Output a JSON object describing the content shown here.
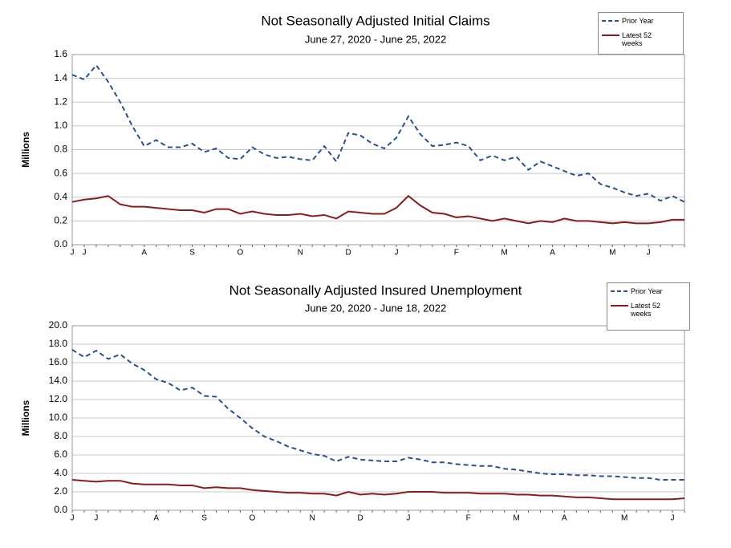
{
  "chart_data": [
    {
      "type": "line",
      "title": "Not Seasonally Adjusted Initial Claims",
      "subtitle": "June 27, 2020 - June 25, 2022",
      "ylabel": "Millions",
      "categories": [
        "J",
        "J",
        null,
        null,
        null,
        null,
        "A",
        null,
        null,
        null,
        "S",
        null,
        null,
        null,
        "O",
        null,
        null,
        null,
        null,
        "N",
        null,
        null,
        null,
        "D",
        null,
        null,
        null,
        "J",
        null,
        null,
        null,
        null,
        "F",
        null,
        null,
        null,
        "M",
        null,
        null,
        null,
        "A",
        null,
        null,
        null,
        null,
        "M",
        null,
        null,
        "J",
        null,
        null,
        null
      ],
      "ylim": [
        0,
        1.6
      ],
      "yticks": [
        {
          "value": 0,
          "label": "0.0"
        },
        {
          "value": 0.2,
          "label": "0.2"
        },
        {
          "value": 0.4,
          "label": "0.4"
        },
        {
          "value": 0.6,
          "label": "0.6"
        },
        {
          "value": 0.8,
          "label": "0.8"
        },
        {
          "value": 1.0,
          "label": "1.0"
        },
        {
          "value": 1.2,
          "label": "1.2"
        },
        {
          "value": 1.4,
          "label": "1.4"
        },
        {
          "value": 1.6,
          "label": "1.6"
        }
      ],
      "grid": true,
      "series": [
        {
          "name": "Prior Year",
          "color": "#2b4f8f",
          "linestyle": "dashed",
          "values": [
            1.43,
            1.39,
            1.51,
            1.37,
            1.2,
            1.0,
            0.83,
            0.88,
            0.82,
            0.82,
            0.85,
            0.78,
            0.81,
            0.73,
            0.72,
            0.82,
            0.76,
            0.73,
            0.74,
            0.72,
            0.71,
            0.83,
            0.7,
            0.94,
            0.92,
            0.85,
            0.81,
            0.9,
            1.08,
            0.93,
            0.83,
            0.84,
            0.86,
            0.83,
            0.71,
            0.75,
            0.71,
            0.74,
            0.63,
            0.7,
            0.66,
            0.62,
            0.58,
            0.6,
            0.51,
            0.48,
            0.44,
            0.41,
            0.43,
            0.37,
            0.41,
            0.36
          ]
        },
        {
          "name": "Latest 52 weeks",
          "color": "#8b1c1c",
          "linestyle": "solid",
          "values": [
            0.36,
            0.38,
            0.39,
            0.41,
            0.34,
            0.32,
            0.32,
            0.31,
            0.3,
            0.29,
            0.29,
            0.27,
            0.3,
            0.3,
            0.26,
            0.28,
            0.26,
            0.25,
            0.25,
            0.26,
            0.24,
            0.25,
            0.22,
            0.28,
            0.27,
            0.26,
            0.26,
            0.31,
            0.41,
            0.33,
            0.27,
            0.26,
            0.23,
            0.24,
            0.22,
            0.2,
            0.22,
            0.2,
            0.18,
            0.2,
            0.19,
            0.22,
            0.2,
            0.2,
            0.19,
            0.18,
            0.19,
            0.18,
            0.18,
            0.19,
            0.21,
            0.21
          ]
        }
      ]
    },
    {
      "type": "line",
      "title": "Not Seasonally Adjusted Insured Unemployment",
      "subtitle": "June 20, 2020 - June 18, 2022",
      "ylabel": "Millions",
      "categories": [
        "J",
        null,
        "J",
        null,
        null,
        null,
        null,
        "A",
        null,
        null,
        null,
        "S",
        null,
        null,
        null,
        "O",
        null,
        null,
        null,
        null,
        "N",
        null,
        null,
        null,
        "D",
        null,
        null,
        null,
        "J",
        null,
        null,
        null,
        null,
        "F",
        null,
        null,
        null,
        "M",
        null,
        null,
        null,
        "A",
        null,
        null,
        null,
        null,
        "M",
        null,
        null,
        null,
        "J",
        null
      ],
      "ylim": [
        0,
        20
      ],
      "yticks": [
        {
          "value": 0,
          "label": "0.0"
        },
        {
          "value": 2,
          "label": "2.0"
        },
        {
          "value": 4,
          "label": "4.0"
        },
        {
          "value": 6,
          "label": "6.0"
        },
        {
          "value": 8,
          "label": "8.0"
        },
        {
          "value": 10,
          "label": "10.0"
        },
        {
          "value": 12,
          "label": "12.0"
        },
        {
          "value": 14,
          "label": "14.0"
        },
        {
          "value": 16,
          "label": "16.0"
        },
        {
          "value": 18,
          "label": "18.0"
        },
        {
          "value": 20,
          "label": "20.0"
        }
      ],
      "grid": true,
      "series": [
        {
          "name": "Prior Year",
          "color": "#2b4f8f",
          "linestyle": "dashed",
          "values": [
            17.4,
            16.6,
            17.3,
            16.4,
            16.9,
            15.9,
            15.2,
            14.2,
            13.8,
            13.0,
            13.3,
            12.4,
            12.3,
            11.0,
            10.0,
            8.9,
            8.0,
            7.5,
            6.9,
            6.5,
            6.1,
            5.9,
            5.3,
            5.8,
            5.5,
            5.4,
            5.3,
            5.3,
            5.7,
            5.5,
            5.2,
            5.2,
            5.0,
            4.9,
            4.8,
            4.8,
            4.5,
            4.4,
            4.2,
            4.0,
            3.9,
            3.9,
            3.8,
            3.8,
            3.7,
            3.7,
            3.6,
            3.5,
            3.5,
            3.3,
            3.3,
            3.3
          ]
        },
        {
          "name": "Latest 52 weeks",
          "color": "#8b1c1c",
          "linestyle": "solid",
          "values": [
            3.3,
            3.2,
            3.1,
            3.2,
            3.2,
            2.9,
            2.8,
            2.8,
            2.8,
            2.7,
            2.7,
            2.4,
            2.5,
            2.4,
            2.4,
            2.2,
            2.1,
            2.0,
            1.9,
            1.9,
            1.8,
            1.8,
            1.6,
            2.0,
            1.7,
            1.8,
            1.7,
            1.8,
            2.0,
            2.0,
            2.0,
            1.9,
            1.9,
            1.9,
            1.8,
            1.8,
            1.8,
            1.7,
            1.7,
            1.6,
            1.6,
            1.5,
            1.4,
            1.4,
            1.3,
            1.2,
            1.2,
            1.2,
            1.2,
            1.2,
            1.2,
            1.3
          ]
        }
      ]
    }
  ]
}
